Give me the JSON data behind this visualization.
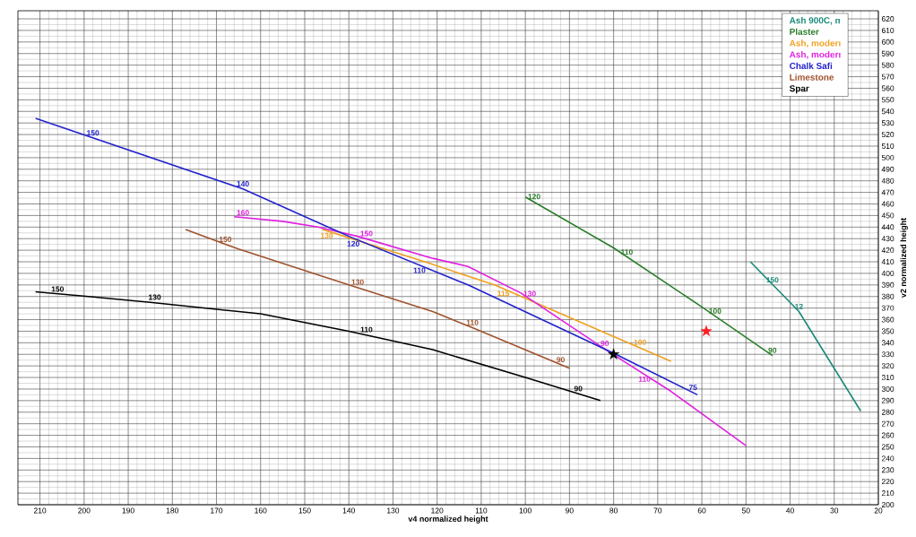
{
  "chart_data": {
    "type": "line",
    "xlabel": "v4 normalized height",
    "ylabel": "v2 normalized height",
    "xlim": [
      215,
      20
    ],
    "ylim": [
      200,
      627
    ],
    "xticks": [
      210,
      200,
      190,
      180,
      170,
      160,
      150,
      140,
      130,
      120,
      110,
      100,
      90,
      80,
      70,
      60,
      50,
      40,
      30,
      20
    ],
    "yticks": [
      200,
      210,
      220,
      230,
      240,
      250,
      260,
      270,
      280,
      290,
      300,
      310,
      320,
      330,
      340,
      350,
      360,
      370,
      380,
      390,
      400,
      410,
      420,
      430,
      440,
      450,
      460,
      470,
      480,
      490,
      500,
      510,
      520,
      530,
      540,
      550,
      560,
      570,
      580,
      590,
      600,
      610,
      620
    ],
    "grid": true,
    "legend": "top right",
    "marker": "none",
    "line_style": "solid",
    "series": [
      {
        "name": "Ash 900C, п",
        "color": "#1a8a7a",
        "x": [
          49,
          38,
          24
        ],
        "values": [
          410,
          367,
          281
        ]
      },
      {
        "name": "Plaster",
        "color": "#2a7d2a",
        "x": [
          100,
          80,
          60,
          44
        ],
        "values": [
          466,
          422,
          371,
          329
        ]
      },
      {
        "name": "Ash, moderı",
        "color": "#f0a020",
        "x": [
          146,
          122,
          107,
          81,
          67
        ],
        "values": [
          438,
          409,
          390,
          347,
          324
        ]
      },
      {
        "name": "Ash, moderı",
        "color": "#e020e0",
        "x": [
          166,
          155,
          147,
          138,
          121,
          113,
          101,
          81,
          67,
          50
        ],
        "values": [
          449,
          445,
          440,
          432,
          413,
          406,
          383,
          332,
          298,
          251
        ]
      },
      {
        "name": "Chalk Safi",
        "color": "#2222cc",
        "x": [
          211,
          164,
          140,
          113,
          80,
          61
        ],
        "values": [
          534,
          473,
          432,
          390,
          331,
          295
        ]
      },
      {
        "name": "Limestone",
        "color": "#a0522d",
        "x": [
          177,
          165,
          140,
          121,
          112,
          90
        ],
        "values": [
          438,
          421,
          390,
          367,
          353,
          318
        ]
      },
      {
        "name": "Spar",
        "color": "#000000",
        "x": [
          211,
          199,
          185,
          160,
          140,
          121,
          100,
          83
        ],
        "values": [
          384,
          380,
          375,
          365,
          350,
          334,
          310,
          290
        ]
      },
      {
        "type": "scatter",
        "marker": "star",
        "color": "#000000",
        "x": [
          80
        ],
        "values": [
          330
        ]
      },
      {
        "type": "scatter",
        "marker": "star",
        "color": "#ff2020",
        "x": [
          59
        ],
        "values": [
          350
        ]
      }
    ],
    "annotations": [
      {
        "text": "150",
        "x": 198,
        "y": 517
      },
      {
        "text": "140",
        "x": 164,
        "y": 473
      },
      {
        "text": "120",
        "x": 139,
        "y": 430
      },
      {
        "text": "110",
        "x": 124,
        "y": 407
      },
      {
        "text": "90",
        "x": 82,
        "y": 335
      },
      {
        "text": "75",
        "x": 62,
        "y": 297
      },
      {
        "text": "160",
        "x": 164,
        "y": 448
      },
      {
        "text": "150",
        "x": 136,
        "y": 430
      },
      {
        "text": "130",
        "x": 99,
        "y": 378
      },
      {
        "text": "110",
        "x": 73,
        "y": 313
      },
      {
        "text": "130",
        "x": 145,
        "y": 437
      },
      {
        "text": "115",
        "x": 105,
        "y": 387
      },
      {
        "text": "100",
        "x": 74,
        "y": 336
      },
      {
        "text": "150",
        "x": 168,
        "y": 425
      },
      {
        "text": "130",
        "x": 138,
        "y": 388
      },
      {
        "text": "110",
        "x": 112,
        "y": 353
      },
      {
        "text": "90",
        "x": 92,
        "y": 321
      },
      {
        "text": "150",
        "x": 206,
        "y": 382
      },
      {
        "text": "130",
        "x": 184,
        "y": 375
      },
      {
        "text": "110",
        "x": 136,
        "y": 347
      },
      {
        "text": "90",
        "x": 88,
        "y": 296
      },
      {
        "text": "120",
        "x": 98,
        "y": 462
      },
      {
        "text": "110",
        "x": 77,
        "y": 414
      },
      {
        "text": "100",
        "x": 57,
        "y": 363
      },
      {
        "text": "90",
        "x": 44,
        "y": 329
      },
      {
        "text": "150",
        "x": 44,
        "y": 390
      },
      {
        "text": "12",
        "x": 38,
        "y": 367
      }
    ]
  }
}
